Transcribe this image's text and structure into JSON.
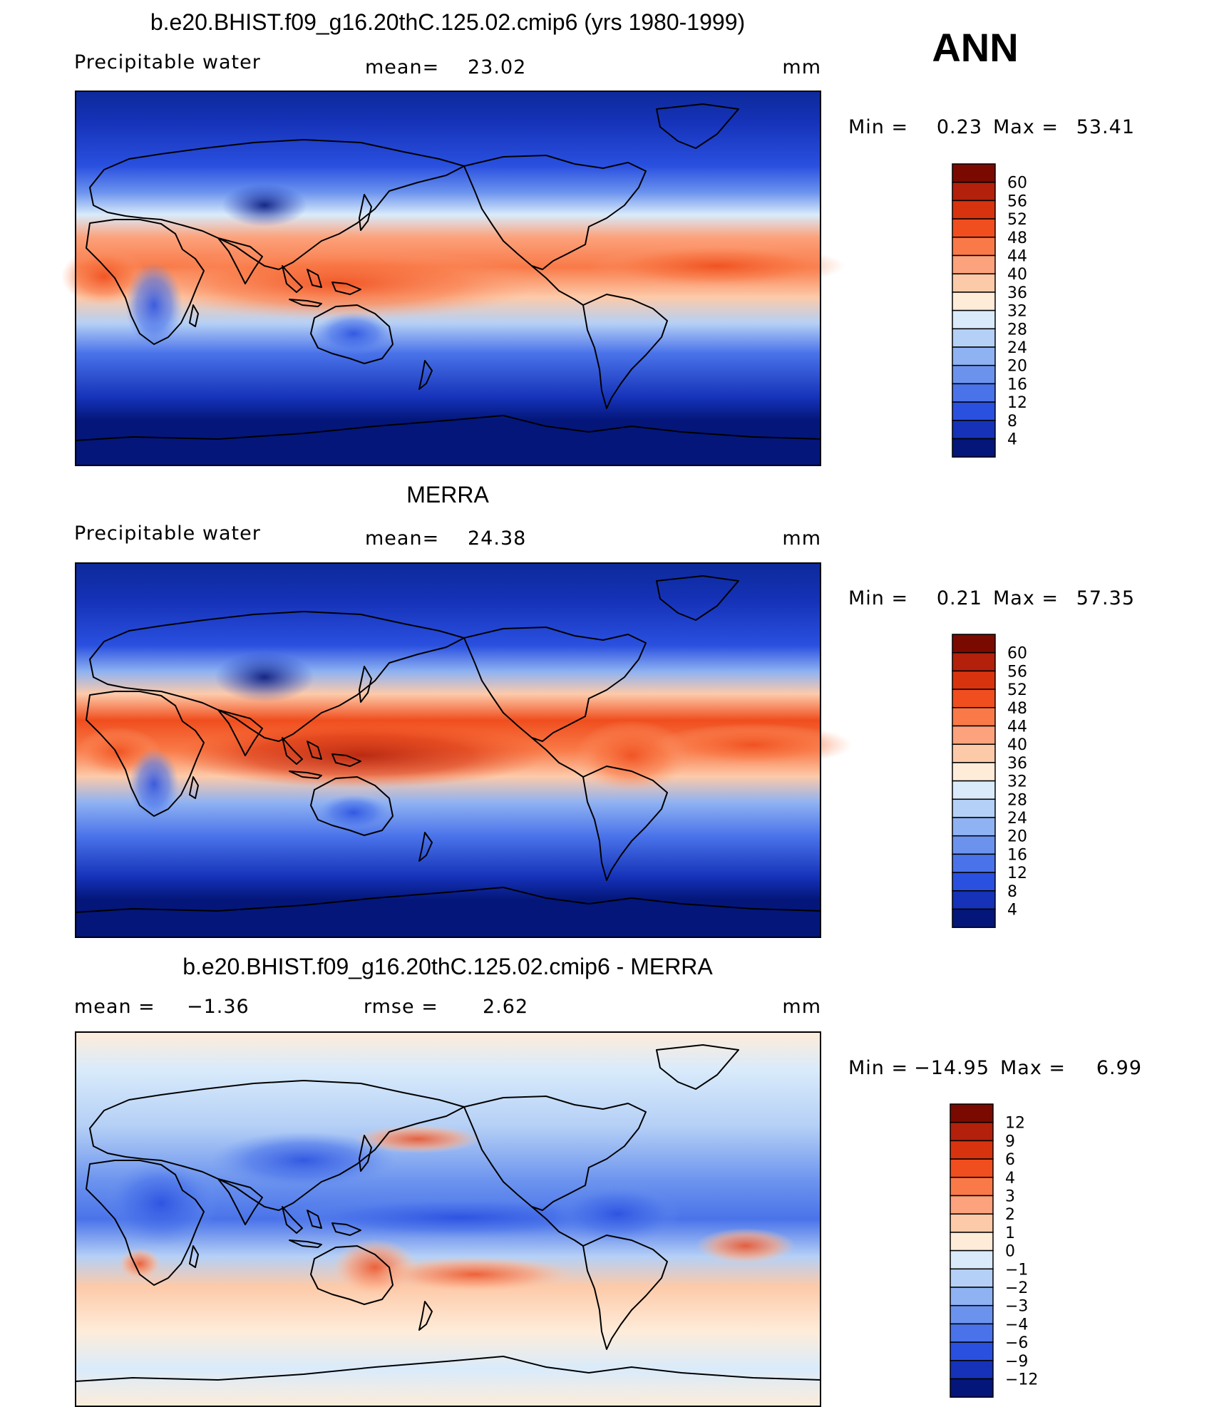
{
  "season": "ANN",
  "units": "mm",
  "panels": [
    {
      "title": "b.e20.BHIST.f09_g16.20thC.125.02.cmip6 (yrs 1980-1999)",
      "left_label": "Precipitable water",
      "center_label": "mean=",
      "center_value": "23.02",
      "units": "mm",
      "min_label": "Min =",
      "min_value": "0.23",
      "max_label": "Max =",
      "max_value": "53.41"
    },
    {
      "title": "MERRA",
      "left_label": "Precipitable water",
      "center_label": "mean=",
      "center_value": "24.38",
      "units": "mm",
      "min_label": "Min =",
      "min_value": "0.21",
      "max_label": "Max =",
      "max_value": "57.35"
    },
    {
      "title": "b.e20.BHIST.f09_g16.20thC.125.02.cmip6 - MERRA",
      "left_label": "mean =",
      "left_value": "−1.36",
      "center_label": "rmse =",
      "center_value": "2.62",
      "units": "mm",
      "min_label": "Min =",
      "min_value": "−14.95",
      "max_label": "Max =",
      "max_value": "6.99"
    }
  ],
  "colorbar_abs": {
    "labels": [
      "60",
      "56",
      "52",
      "48",
      "44",
      "40",
      "36",
      "32",
      "28",
      "24",
      "20",
      "16",
      "12",
      "8",
      "4"
    ],
    "colors": [
      "#7a0a00",
      "#b3200b",
      "#d8330f",
      "#f04e1e",
      "#f97a48",
      "#fca27c",
      "#fdcaa9",
      "#feecd9",
      "#d9ebfb",
      "#b5d0f6",
      "#8fb2f2",
      "#6b93ee",
      "#4a73ea",
      "#2a50e0",
      "#1532b8",
      "#041679"
    ]
  },
  "colorbar_diff": {
    "labels": [
      "12",
      "9",
      "6",
      "4",
      "3",
      "2",
      "1",
      "0",
      "−1",
      "−2",
      "−3",
      "−4",
      "−6",
      "−9",
      "−12"
    ],
    "colors": [
      "#7a0a00",
      "#b3200b",
      "#d8330f",
      "#f04e1e",
      "#f97a48",
      "#fca27c",
      "#fdcaa9",
      "#feecd9",
      "#d9ebfb",
      "#b5d0f6",
      "#8fb2f2",
      "#6b93ee",
      "#4a73ea",
      "#2a50e0",
      "#1532b8",
      "#041679"
    ]
  }
}
